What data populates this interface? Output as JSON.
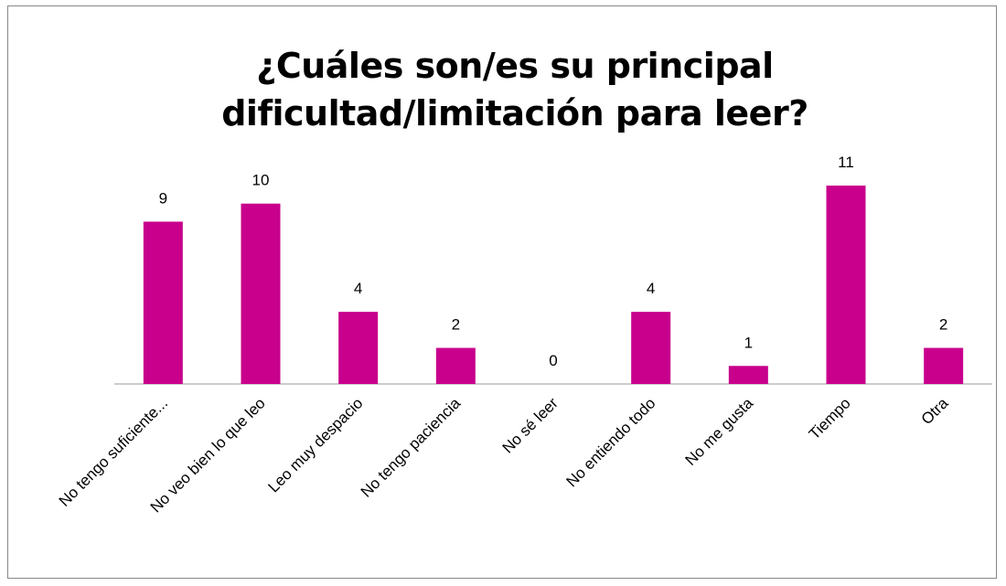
{
  "chart_data": {
    "type": "bar",
    "title": "¿Cuáles son/es su principal dificultad/limitación para leer?",
    "categories": [
      "No tengo suficiente...",
      "No veo bien lo que leo",
      "Leo muy despacio",
      "No tengo paciencia",
      "No sé leer",
      "No entiendo todo",
      "No me gusta",
      "Tiempo",
      "Otra"
    ],
    "values": [
      9,
      10,
      4,
      2,
      0,
      4,
      1,
      11,
      2
    ],
    "color": "#c8008c"
  }
}
